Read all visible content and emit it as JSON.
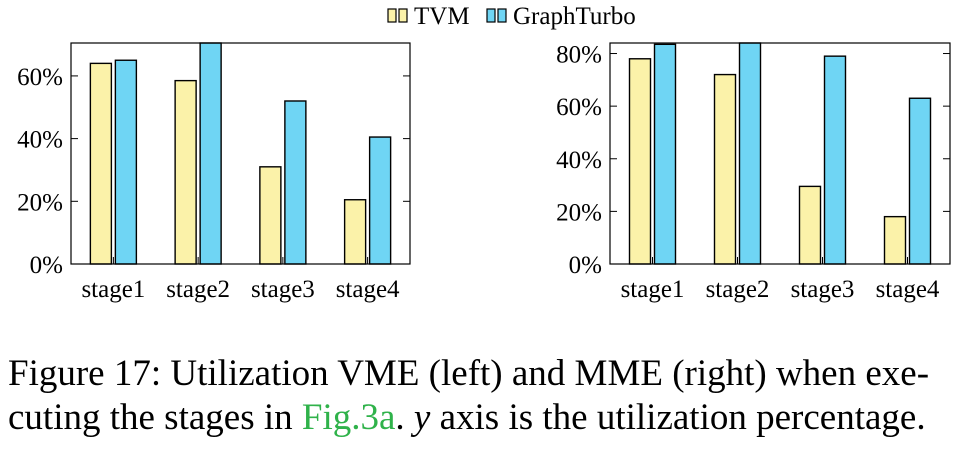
{
  "legend": [
    {
      "name": "TVM",
      "color": "#fbf2a9"
    },
    {
      "name": "GraphTurbo",
      "color": "#6fd5f4"
    }
  ],
  "chart_data": [
    {
      "type": "bar",
      "categories": [
        "stage1",
        "stage2",
        "stage3",
        "stage4"
      ],
      "series": [
        {
          "name": "TVM",
          "values": [
            64,
            58.5,
            31,
            20.5
          ]
        },
        {
          "name": "GraphTurbo",
          "values": [
            65,
            70.5,
            52,
            40.5
          ]
        }
      ],
      "ylim": [
        0,
        70.5
      ],
      "yticks": [
        0,
        20,
        40,
        60
      ],
      "ytick_labels": [
        "0%",
        "20%",
        "40%",
        "60%"
      ],
      "grid": false,
      "legend_position": "top-center"
    },
    {
      "type": "bar",
      "categories": [
        "stage1",
        "stage2",
        "stage3",
        "stage4"
      ],
      "series": [
        {
          "name": "TVM",
          "values": [
            78,
            72,
            29.5,
            18
          ]
        },
        {
          "name": "GraphTurbo",
          "values": [
            83.5,
            84,
            79,
            63
          ]
        }
      ],
      "ylim": [
        0,
        84
      ],
      "yticks": [
        0,
        20,
        40,
        60,
        80
      ],
      "ytick_labels": [
        "0%",
        "20%",
        "40%",
        "60%",
        "80%"
      ],
      "grid": false,
      "legend_position": "top-center"
    }
  ],
  "caption": {
    "prefix": "Figure 17: Utilization VME (left) and MME (right) when exe-",
    "line2_start": "cuting the stages in ",
    "ref": "Fig.3a",
    "after_ref": ". ",
    "y_var": "y",
    "suffix": " axis is the utilization percentage."
  }
}
